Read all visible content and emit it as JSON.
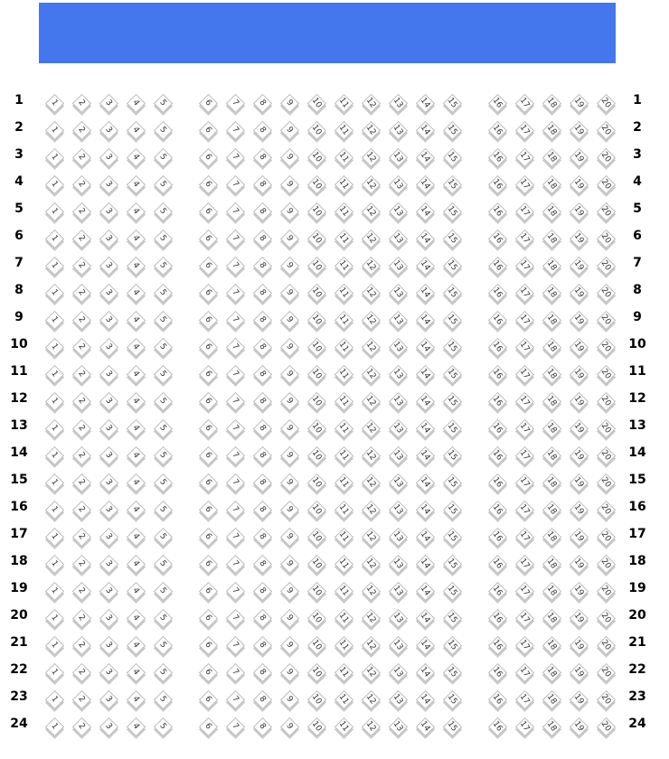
{
  "screen": {
    "color": "#4477EE"
  },
  "seat_map": {
    "rows": [
      "1",
      "2",
      "3",
      "4",
      "5",
      "6",
      "7",
      "8",
      "9",
      "10",
      "11",
      "12",
      "13",
      "14",
      "15",
      "16",
      "17",
      "18",
      "19",
      "20",
      "21",
      "22",
      "23",
      "24"
    ],
    "sections": [
      {
        "seats": [
          "1",
          "2",
          "3",
          "4",
          "5"
        ]
      },
      {
        "seats": [
          "6",
          "7",
          "8",
          "9",
          "10",
          "11",
          "12",
          "13",
          "14",
          "15"
        ]
      },
      {
        "seats": [
          "16",
          "17",
          "18",
          "19",
          "20"
        ]
      }
    ]
  }
}
